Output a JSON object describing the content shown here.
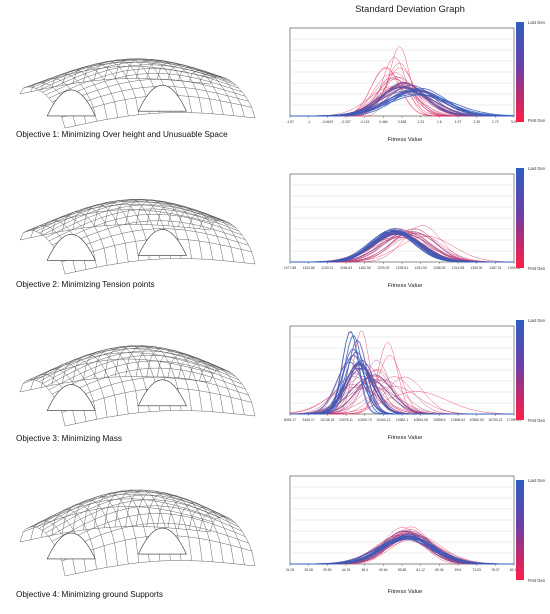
{
  "header": {
    "title": "Standard Deviation Graph"
  },
  "legend": {
    "top_label": "Last Gen",
    "bottom_label": "First Gen"
  },
  "x_label": "Fitness Value",
  "rows": [
    {
      "caption": "Objective 1: Minimizing Over height and Unusuable Space",
      "ticks": [
        "-1.57",
        "-1",
        "-0.0629",
        "-0.257",
        "-0.115",
        "0.466",
        "0.838",
        "1.23",
        "1.6",
        "1.97",
        "2.35",
        "2.72",
        "3.09"
      ]
    },
    {
      "caption": "Objective 2: Minimizing Tension points",
      "ticks": [
        "1077.88",
        "1103.86",
        "1130.21",
        "1156.63",
        "1182.96",
        "1209.29",
        "1235.61",
        "1261.93",
        "1288.26",
        "1314.58",
        "1340.91",
        "1367.24",
        "1393.56"
      ]
    },
    {
      "caption": "Objective 3: Minimizing Mass",
      "ticks": [
        "8094.17",
        "9165.17",
        "10136.18",
        "10076.11",
        "10405.70",
        "10404.13",
        "10582.1",
        "10694.08",
        "10896.5",
        "10896.04",
        "10960.53",
        "16753.22",
        "17090.01"
      ]
    },
    {
      "caption": "Objective 4: Minimizing ground Supports",
      "ticks": [
        "31.05",
        "35.08",
        "39.83",
        "44.15",
        "48.4",
        "50.64",
        "55.88",
        "61.12",
        "65.36",
        "69.6",
        "73.83",
        "78.07",
        "82.31"
      ]
    }
  ],
  "colors": {
    "first_gen": "#ff1f4a",
    "last_gen": "#2f5fbf"
  }
}
